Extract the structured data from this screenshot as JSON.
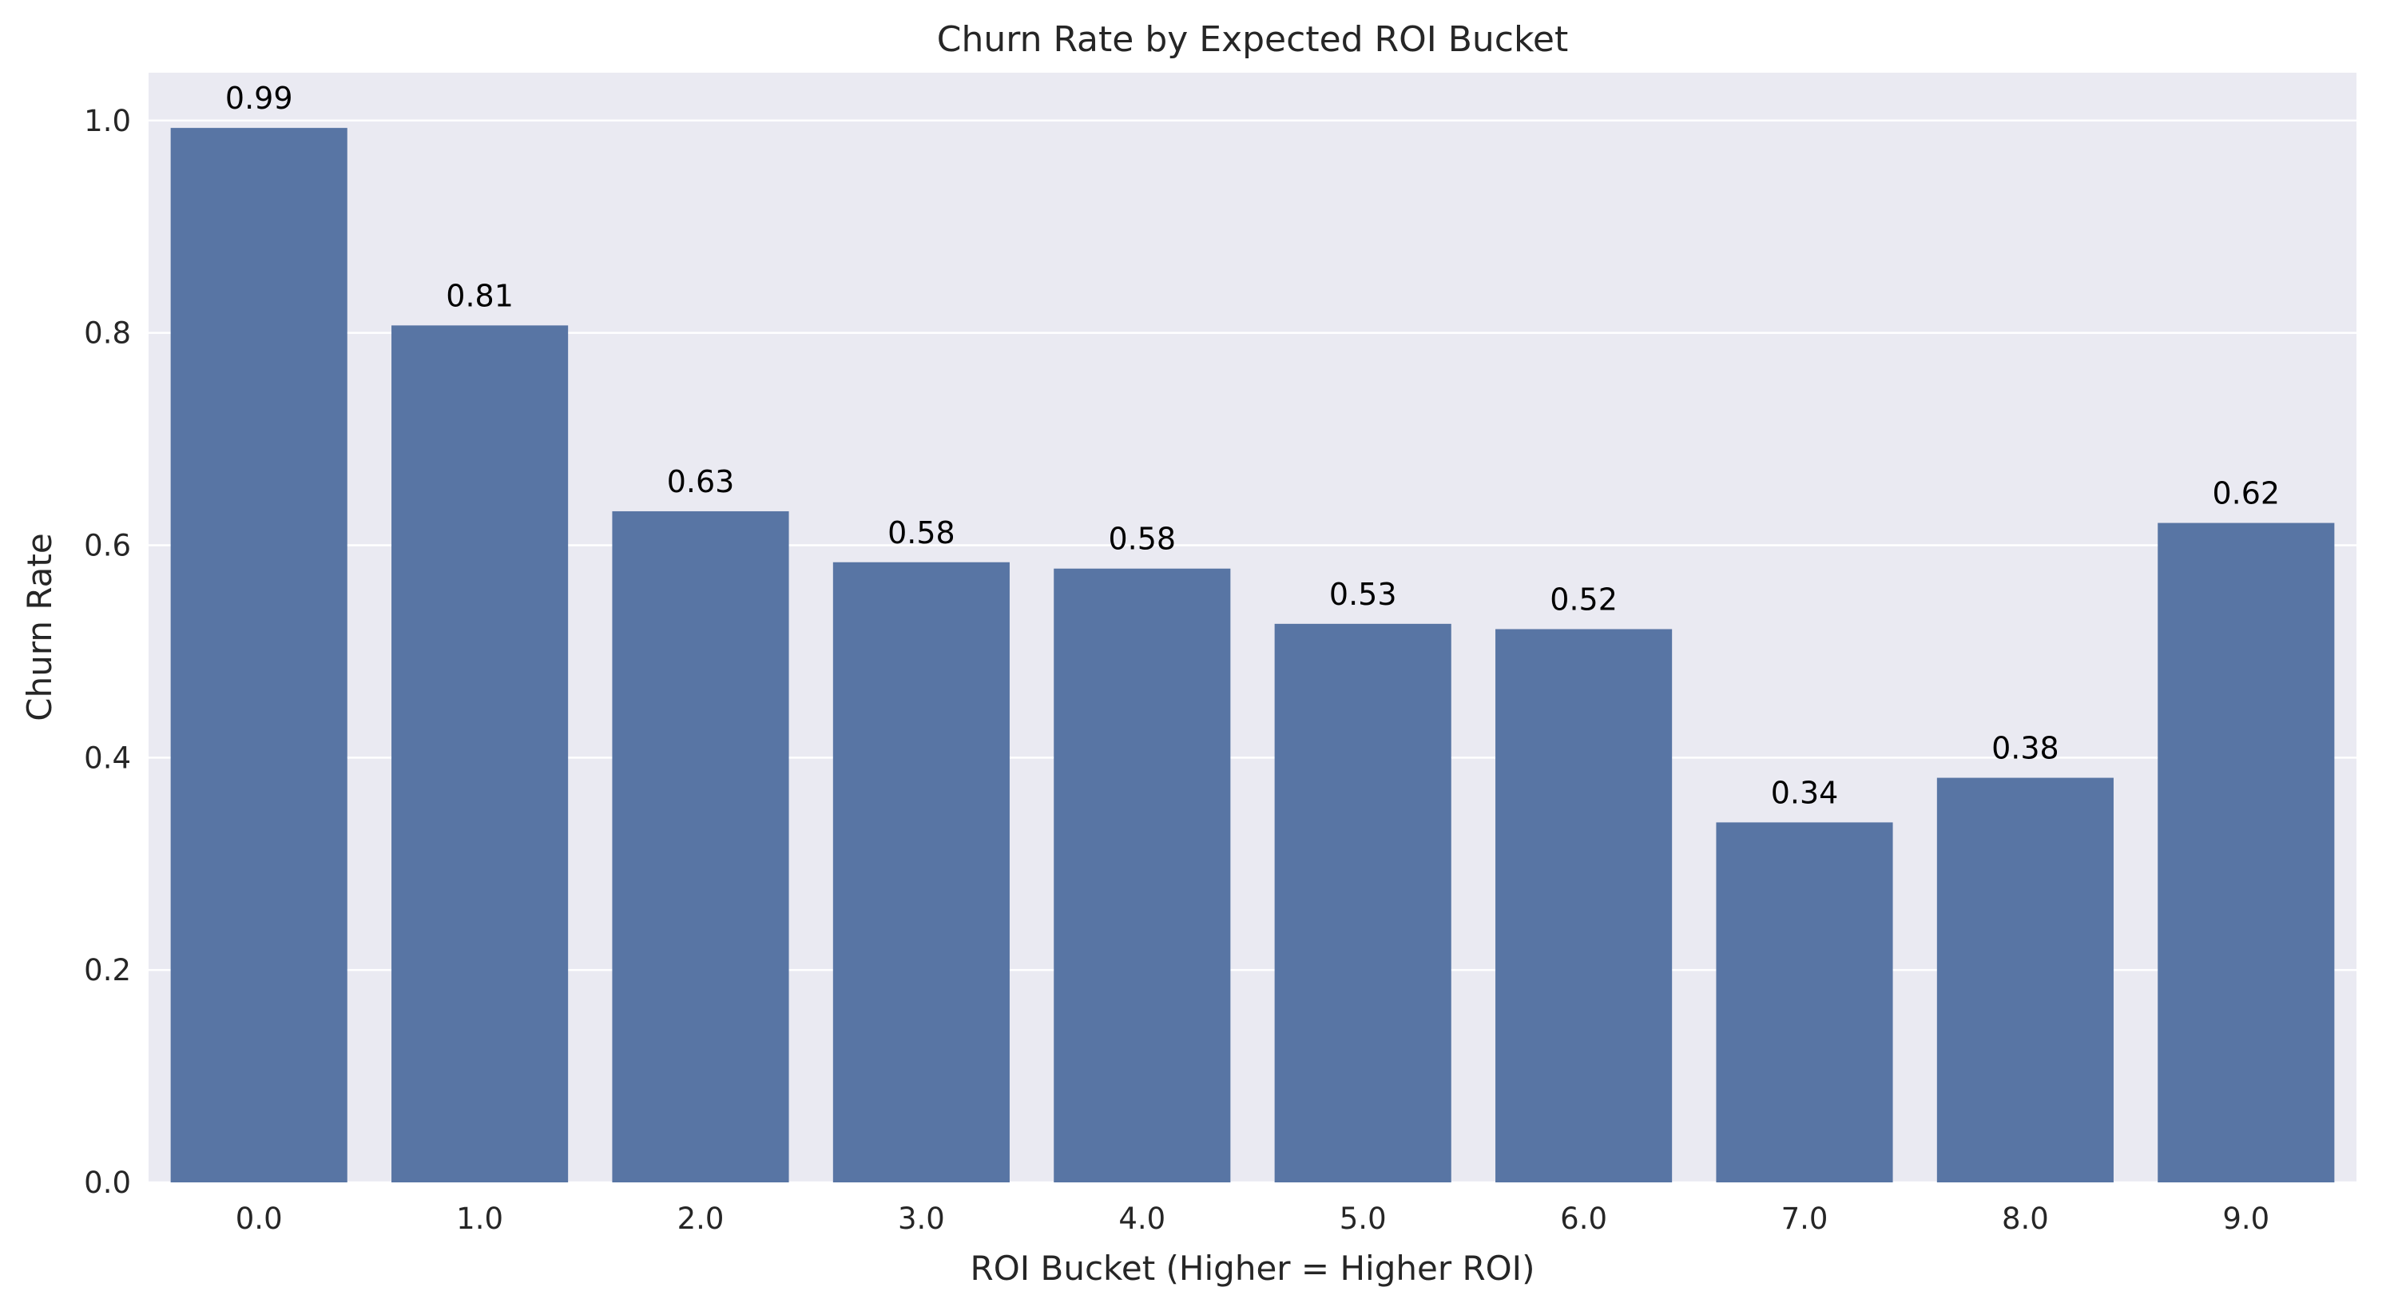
{
  "chart_data": {
    "type": "bar",
    "title": "Churn Rate by Expected ROI Bucket",
    "xlabel": "ROI Bucket (Higher = Higher ROI)",
    "ylabel": "Churn Rate",
    "categories": [
      "0.0",
      "1.0",
      "2.0",
      "3.0",
      "4.0",
      "5.0",
      "6.0",
      "7.0",
      "8.0",
      "9.0"
    ],
    "values": [
      0.993,
      0.807,
      0.632,
      0.584,
      0.578,
      0.526,
      0.521,
      0.339,
      0.381,
      0.621
    ],
    "data_labels": [
      "0.99",
      "0.81",
      "0.63",
      "0.58",
      "0.58",
      "0.53",
      "0.52",
      "0.34",
      "0.38",
      "0.62"
    ],
    "ylim": [
      0,
      1.045
    ],
    "yticks": [
      0.0,
      0.2,
      0.4,
      0.6,
      0.8,
      1.0
    ],
    "ytick_labels": [
      "0.0",
      "0.2",
      "0.4",
      "0.6",
      "0.8",
      "1.0"
    ],
    "grid": true,
    "colors": {
      "bar": "#5875a4",
      "plot_background": "#eaeaf2",
      "grid": "#ffffff"
    }
  }
}
